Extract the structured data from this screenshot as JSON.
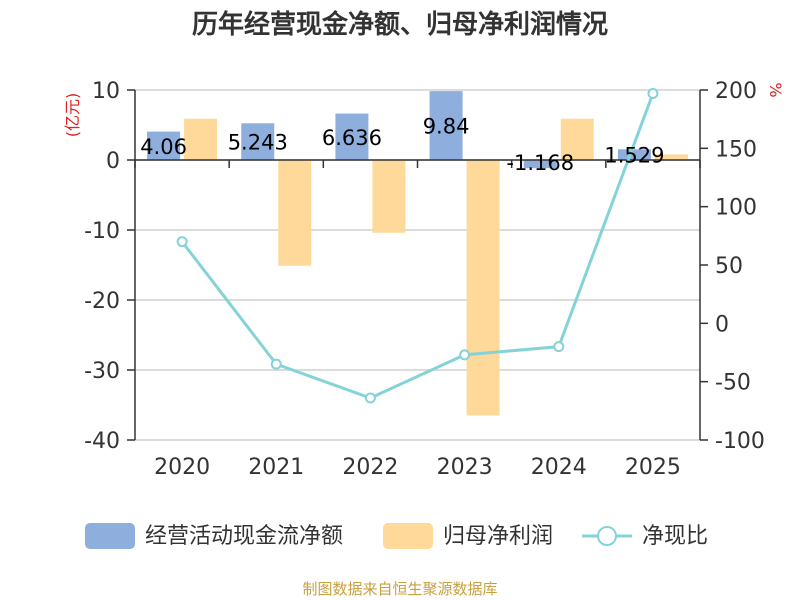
{
  "chart_data": {
    "type": "bar",
    "title": "历年经营现金净额、归母净利润情况",
    "categories": [
      "2020",
      "2021",
      "2022",
      "2023",
      "2024",
      "2025"
    ],
    "series": [
      {
        "name": "经营活动现金流净额",
        "type": "bar",
        "axis": "left",
        "color": "#8eaede",
        "values": [
          4.06,
          5.243,
          6.636,
          9.84,
          -1.168,
          1.529
        ],
        "labels": [
          "4.06",
          "5.243",
          "6.636",
          "9.84",
          "-1.168",
          "1.529"
        ]
      },
      {
        "name": "归母净利润",
        "type": "bar",
        "axis": "left",
        "color": "#fed999",
        "values": [
          5.9,
          -15.1,
          -10.4,
          -36.5,
          5.9,
          0.8
        ]
      },
      {
        "name": "净现比",
        "type": "line",
        "axis": "right",
        "color": "#85d3d8",
        "values": [
          70,
          -35,
          -64,
          -27,
          -20,
          197
        ]
      }
    ],
    "left_axis": {
      "label": "(亿元)",
      "ylim": [
        -40,
        10
      ],
      "ticks": [
        -40,
        -30,
        -20,
        -10,
        0,
        10
      ]
    },
    "right_axis": {
      "label": "%",
      "ylim": [
        -100,
        200
      ],
      "ticks": [
        -100,
        -50,
        0,
        50,
        100,
        150,
        200
      ]
    },
    "grid": true,
    "legend": "bottom"
  },
  "legend": {
    "items": [
      "经营活动现金流净额",
      "归母净利润",
      "净现比"
    ]
  },
  "source": "制图数据来自恒生聚源数据库"
}
